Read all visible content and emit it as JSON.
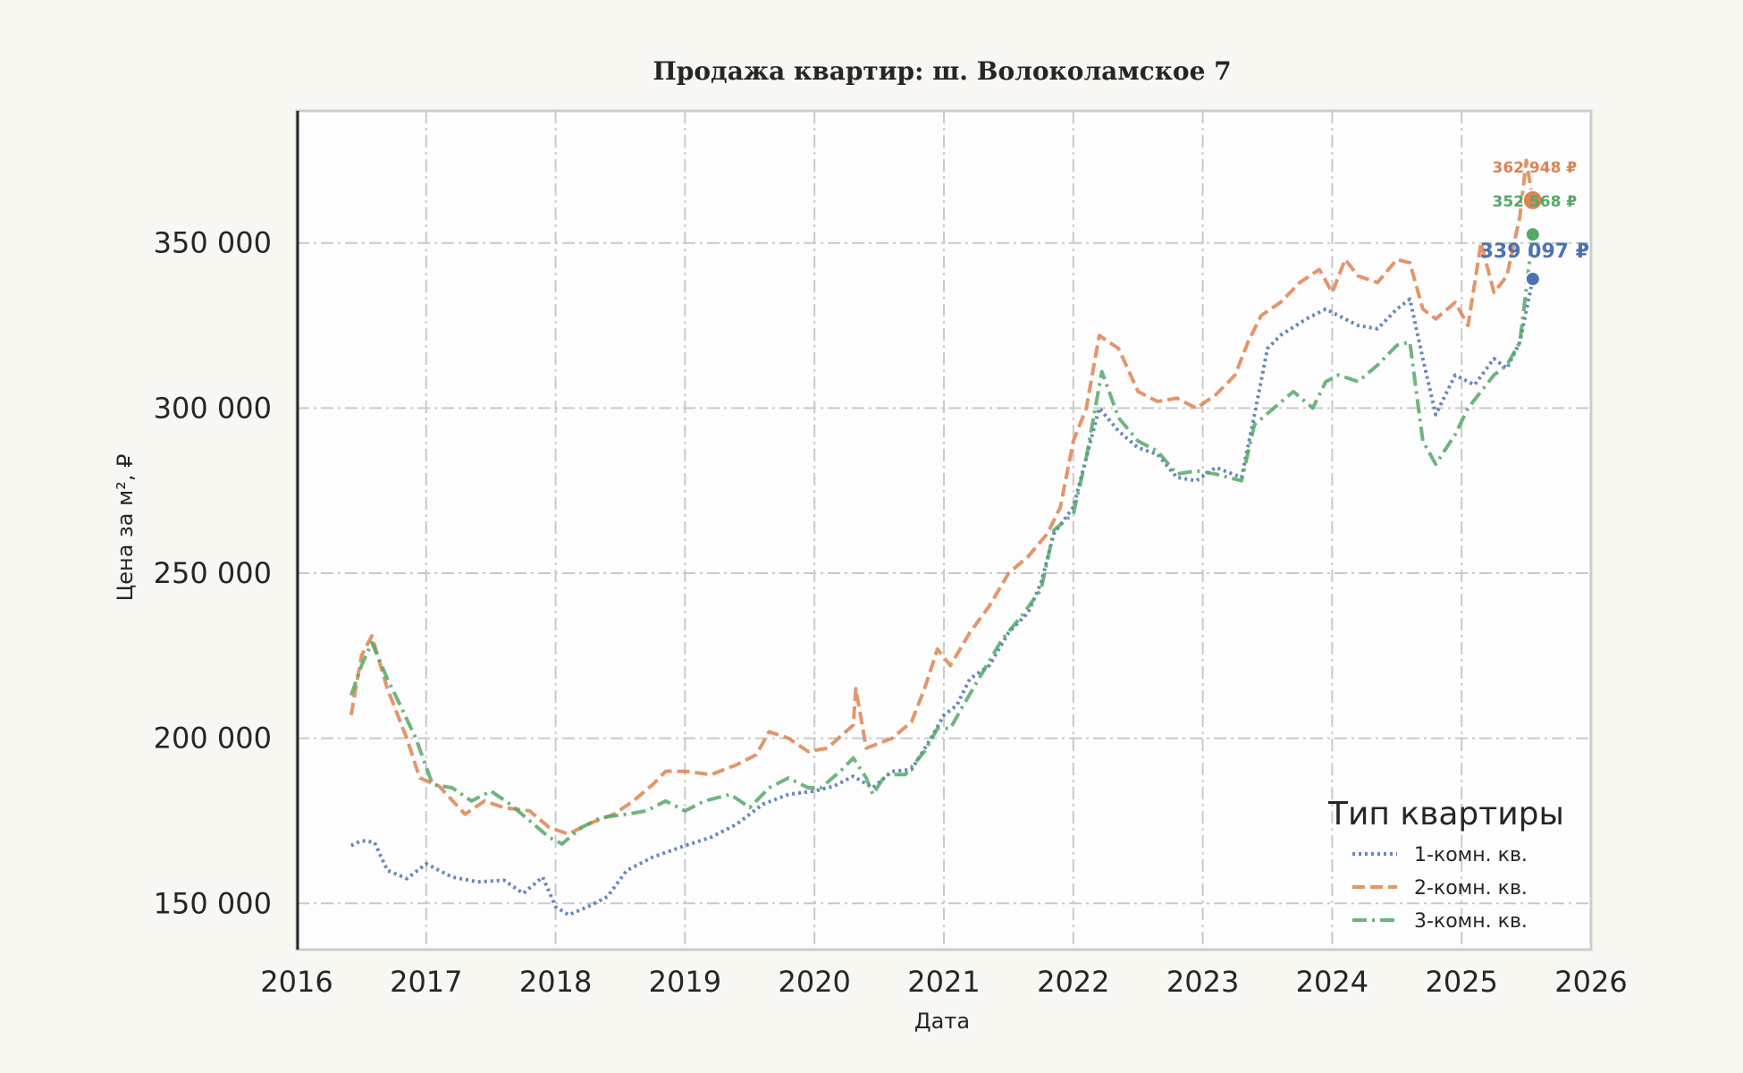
{
  "chart_data": {
    "type": "line",
    "title": "Продажа квартир: ш. Волоколамское 7",
    "xlabel": "Дата",
    "ylabel": "Цена за м², ₽",
    "xlim": [
      2016,
      2026
    ],
    "ylim": [
      136000,
      390000
    ],
    "x_ticks": [
      "2016",
      "2017",
      "2018",
      "2019",
      "2020",
      "2021",
      "2022",
      "2023",
      "2024",
      "2025",
      "2026"
    ],
    "y_ticks": [
      150000,
      200000,
      250000,
      300000,
      350000
    ],
    "y_tick_labels": [
      "150 000",
      "200 000",
      "250 000",
      "300 000",
      "350 000"
    ],
    "grid": true,
    "legend": {
      "title": "Тип квартиры",
      "position": "lower-right"
    },
    "series": [
      {
        "name": "1-комн. кв.",
        "color": "#4c72b0",
        "style": "dotted",
        "end_label": "339 097 ₽",
        "end_value": 339097,
        "points": [
          [
            2016.42,
            167500
          ],
          [
            2016.5,
            169000
          ],
          [
            2016.6,
            168500
          ],
          [
            2016.7,
            160000
          ],
          [
            2016.85,
            157500
          ],
          [
            2017.0,
            162000
          ],
          [
            2017.2,
            158000
          ],
          [
            2017.4,
            156500
          ],
          [
            2017.6,
            157000
          ],
          [
            2017.75,
            153000
          ],
          [
            2017.9,
            158000
          ],
          [
            2018.0,
            149000
          ],
          [
            2018.1,
            146500
          ],
          [
            2018.25,
            149000
          ],
          [
            2018.4,
            152000
          ],
          [
            2018.55,
            160000
          ],
          [
            2018.75,
            164000
          ],
          [
            2019.0,
            167500
          ],
          [
            2019.2,
            170000
          ],
          [
            2019.4,
            174000
          ],
          [
            2019.6,
            180000
          ],
          [
            2019.8,
            183000
          ],
          [
            2020.0,
            184000
          ],
          [
            2020.15,
            185500
          ],
          [
            2020.3,
            188500
          ],
          [
            2020.45,
            185000
          ],
          [
            2020.6,
            190000
          ],
          [
            2020.75,
            190500
          ],
          [
            2020.9,
            200000
          ],
          [
            2021.0,
            207000
          ],
          [
            2021.1,
            210000
          ],
          [
            2021.2,
            218000
          ],
          [
            2021.35,
            222000
          ],
          [
            2021.5,
            232000
          ],
          [
            2021.65,
            238000
          ],
          [
            2021.75,
            247000
          ],
          [
            2021.85,
            262000
          ],
          [
            2022.0,
            270000
          ],
          [
            2022.1,
            285000
          ],
          [
            2022.2,
            300000
          ],
          [
            2022.35,
            293000
          ],
          [
            2022.5,
            288000
          ],
          [
            2022.65,
            286000
          ],
          [
            2022.8,
            279000
          ],
          [
            2022.95,
            278000
          ],
          [
            2023.1,
            282000
          ],
          [
            2023.3,
            279000
          ],
          [
            2023.4,
            298000
          ],
          [
            2023.5,
            318000
          ],
          [
            2023.6,
            322000
          ],
          [
            2023.8,
            327000
          ],
          [
            2023.95,
            330000
          ],
          [
            2024.05,
            328000
          ],
          [
            2024.2,
            325000
          ],
          [
            2024.35,
            324000
          ],
          [
            2024.5,
            330000
          ],
          [
            2024.6,
            333000
          ],
          [
            2024.7,
            315000
          ],
          [
            2024.8,
            298000
          ],
          [
            2024.95,
            310000
          ],
          [
            2025.1,
            307000
          ],
          [
            2025.25,
            315000
          ],
          [
            2025.35,
            312000
          ],
          [
            2025.45,
            320000
          ],
          [
            2025.55,
            339097
          ]
        ]
      },
      {
        "name": "2-комн. кв.",
        "color": "#dd8452",
        "style": "dashed",
        "end_label": "362 948 ₽",
        "end_value": 362948,
        "points": [
          [
            2016.42,
            207000
          ],
          [
            2016.5,
            225000
          ],
          [
            2016.58,
            231000
          ],
          [
            2016.7,
            215000
          ],
          [
            2016.85,
            200000
          ],
          [
            2016.95,
            188000
          ],
          [
            2017.1,
            185500
          ],
          [
            2017.3,
            177000
          ],
          [
            2017.45,
            181000
          ],
          [
            2017.6,
            179000
          ],
          [
            2017.8,
            178000
          ],
          [
            2017.95,
            173000
          ],
          [
            2018.1,
            171000
          ],
          [
            2018.25,
            174000
          ],
          [
            2018.45,
            177000
          ],
          [
            2018.6,
            181000
          ],
          [
            2018.75,
            186000
          ],
          [
            2018.85,
            190000
          ],
          [
            2019.0,
            190000
          ],
          [
            2019.2,
            189000
          ],
          [
            2019.4,
            192000
          ],
          [
            2019.55,
            195000
          ],
          [
            2019.65,
            202000
          ],
          [
            2019.8,
            200000
          ],
          [
            2019.95,
            196000
          ],
          [
            2020.1,
            197000
          ],
          [
            2020.3,
            204000
          ],
          [
            2020.32,
            215000
          ],
          [
            2020.4,
            197000
          ],
          [
            2020.6,
            200000
          ],
          [
            2020.75,
            205000
          ],
          [
            2020.85,
            215000
          ],
          [
            2020.95,
            227000
          ],
          [
            2021.05,
            222000
          ],
          [
            2021.2,
            232000
          ],
          [
            2021.35,
            240000
          ],
          [
            2021.5,
            250000
          ],
          [
            2021.65,
            255000
          ],
          [
            2021.8,
            262000
          ],
          [
            2021.9,
            270000
          ],
          [
            2022.0,
            290000
          ],
          [
            2022.1,
            300000
          ],
          [
            2022.2,
            322000
          ],
          [
            2022.35,
            318000
          ],
          [
            2022.5,
            305000
          ],
          [
            2022.65,
            302000
          ],
          [
            2022.8,
            303000
          ],
          [
            2022.95,
            300000
          ],
          [
            2023.1,
            304000
          ],
          [
            2023.25,
            310000
          ],
          [
            2023.35,
            320000
          ],
          [
            2023.45,
            328000
          ],
          [
            2023.6,
            332000
          ],
          [
            2023.75,
            338000
          ],
          [
            2023.9,
            342000
          ],
          [
            2024.0,
            335000
          ],
          [
            2024.1,
            345000
          ],
          [
            2024.2,
            340000
          ],
          [
            2024.35,
            338000
          ],
          [
            2024.5,
            345000
          ],
          [
            2024.6,
            344000
          ],
          [
            2024.7,
            330000
          ],
          [
            2024.8,
            327000
          ],
          [
            2024.95,
            332000
          ],
          [
            2025.05,
            325000
          ],
          [
            2025.15,
            350000
          ],
          [
            2025.25,
            335000
          ],
          [
            2025.35,
            340000
          ],
          [
            2025.45,
            358000
          ],
          [
            2025.5,
            375000
          ],
          [
            2025.55,
            362948
          ]
        ]
      },
      {
        "name": "3-комн. кв.",
        "color": "#55a868",
        "style": "dashdot",
        "end_label": "352 568 ₽",
        "end_value": 352568,
        "points": [
          [
            2016.42,
            213000
          ],
          [
            2016.5,
            222000
          ],
          [
            2016.58,
            229000
          ],
          [
            2016.7,
            218000
          ],
          [
            2016.8,
            210000
          ],
          [
            2016.92,
            200000
          ],
          [
            2017.05,
            186000
          ],
          [
            2017.2,
            185000
          ],
          [
            2017.35,
            181000
          ],
          [
            2017.5,
            184000
          ],
          [
            2017.65,
            180000
          ],
          [
            2017.8,
            175000
          ],
          [
            2017.95,
            170000
          ],
          [
            2018.05,
            168000
          ],
          [
            2018.2,
            173000
          ],
          [
            2018.35,
            176000
          ],
          [
            2018.55,
            177000
          ],
          [
            2018.7,
            178000
          ],
          [
            2018.85,
            181000
          ],
          [
            2019.0,
            178000
          ],
          [
            2019.15,
            181000
          ],
          [
            2019.35,
            183000
          ],
          [
            2019.5,
            179000
          ],
          [
            2019.65,
            185000
          ],
          [
            2019.8,
            188000
          ],
          [
            2019.95,
            185000
          ],
          [
            2020.05,
            185000
          ],
          [
            2020.2,
            190000
          ],
          [
            2020.3,
            194000
          ],
          [
            2020.4,
            188000
          ],
          [
            2020.45,
            183000
          ],
          [
            2020.55,
            189000
          ],
          [
            2020.7,
            189000
          ],
          [
            2020.85,
            196000
          ],
          [
            2020.95,
            203000
          ],
          [
            2021.05,
            203000
          ],
          [
            2021.15,
            210000
          ],
          [
            2021.3,
            220000
          ],
          [
            2021.45,
            230000
          ],
          [
            2021.6,
            237000
          ],
          [
            2021.75,
            245000
          ],
          [
            2021.85,
            263000
          ],
          [
            2022.0,
            268000
          ],
          [
            2022.1,
            285000
          ],
          [
            2022.22,
            311000
          ],
          [
            2022.35,
            297000
          ],
          [
            2022.5,
            290000
          ],
          [
            2022.65,
            287000
          ],
          [
            2022.8,
            280000
          ],
          [
            2022.95,
            281000
          ],
          [
            2023.1,
            280000
          ],
          [
            2023.3,
            278000
          ],
          [
            2023.4,
            295000
          ],
          [
            2023.55,
            300000
          ],
          [
            2023.7,
            305000
          ],
          [
            2023.85,
            300000
          ],
          [
            2023.95,
            308000
          ],
          [
            2024.05,
            310000
          ],
          [
            2024.2,
            308000
          ],
          [
            2024.35,
            313000
          ],
          [
            2024.5,
            319000
          ],
          [
            2024.6,
            320000
          ],
          [
            2024.7,
            290000
          ],
          [
            2024.8,
            283000
          ],
          [
            2024.95,
            292000
          ],
          [
            2025.05,
            300000
          ],
          [
            2025.15,
            305000
          ],
          [
            2025.25,
            310000
          ],
          [
            2025.35,
            313000
          ],
          [
            2025.45,
            320000
          ],
          [
            2025.55,
            352568
          ]
        ]
      }
    ]
  }
}
